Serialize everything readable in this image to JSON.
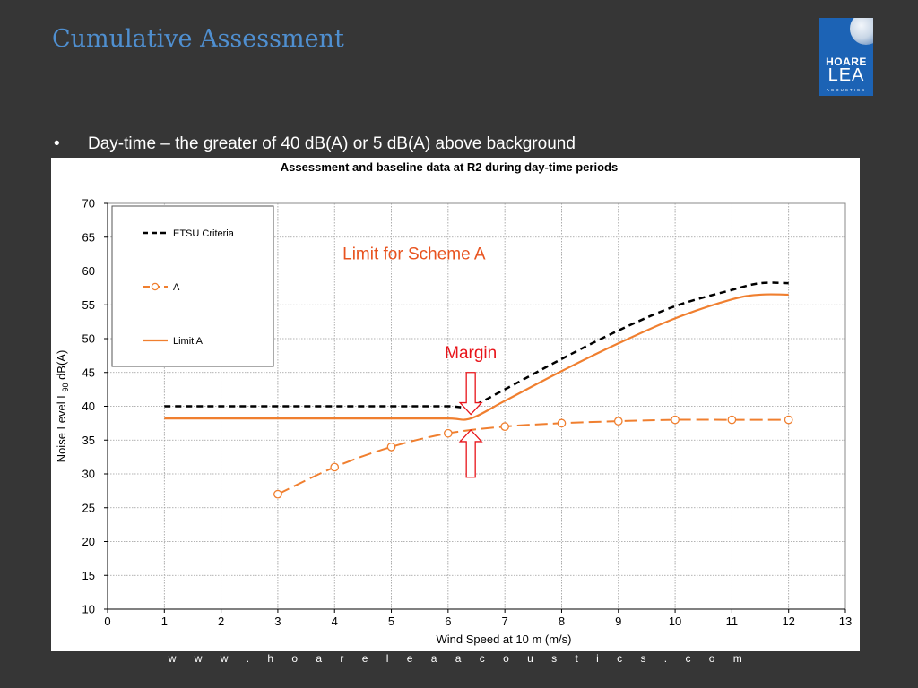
{
  "slide": {
    "title": "Cumulative Assessment",
    "bullet_marker": "•",
    "bullet_text": "Day-time – the greater of 40 dB(A) or 5 dB(A) above background",
    "footer_url": "w w w . h o a r e l e a a c o u s t i c s . c o m"
  },
  "logo": {
    "line1": "HOARE",
    "line2": "LEA",
    "line3": "ACOUSTICS"
  },
  "chart_data": {
    "type": "line",
    "title": "Assessment and baseline data at R2 during day-time periods",
    "xlabel": "Wind Speed at 10 m (m/s)",
    "ylabel_parts": {
      "main": "Noise Level L",
      "sub": "90",
      "unit": " dB(A)"
    },
    "xlim": [
      0,
      13
    ],
    "ylim": [
      10,
      70
    ],
    "x_ticks": [
      0,
      1,
      2,
      3,
      4,
      5,
      6,
      7,
      8,
      9,
      10,
      11,
      12,
      13
    ],
    "y_ticks": [
      10,
      15,
      20,
      25,
      30,
      35,
      40,
      45,
      50,
      55,
      60,
      65,
      70
    ],
    "grid": true,
    "legend_position": "top-left",
    "series": [
      {
        "name": "ETSU Criteria",
        "color": "#000000",
        "style": "dashed",
        "x": [
          1,
          2,
          3,
          4,
          5,
          6,
          6.4,
          7,
          8,
          9,
          10,
          11,
          11.5,
          12
        ],
        "y": [
          40,
          40,
          40,
          40,
          40,
          40,
          40,
          42.5,
          47,
          51.2,
          54.8,
          57.2,
          58.2,
          58.2
        ]
      },
      {
        "name": "A",
        "color": "#f07f2f",
        "style": "dashed-markers",
        "x": [
          3,
          4,
          5,
          6,
          7,
          8,
          9,
          10,
          11,
          12
        ],
        "y": [
          27,
          31,
          34,
          36,
          37,
          37.5,
          37.8,
          38,
          38,
          38
        ]
      },
      {
        "name": "Limit A",
        "color": "#f07f2f",
        "style": "solid",
        "x": [
          1,
          2,
          3,
          4,
          5,
          6,
          6.4,
          7,
          8,
          9,
          10,
          11,
          11.5,
          12
        ],
        "y": [
          38.2,
          38.2,
          38.2,
          38.2,
          38.2,
          38.2,
          38.2,
          40.8,
          45.2,
          49.3,
          53,
          55.8,
          56.5,
          56.5
        ]
      }
    ],
    "annotations": [
      {
        "text": "Limit for Scheme A",
        "color": "#e8531f",
        "x": 5.4,
        "y": 61.7
      },
      {
        "text": "Margin",
        "color": "#e8141a",
        "x": 6.4,
        "y": 47.1
      }
    ],
    "margin_arrows": {
      "x": 6.4,
      "down": {
        "from": 45,
        "to": 38.8
      },
      "up": {
        "from": 29.5,
        "to": 36.5
      },
      "color": "#e8141a"
    }
  }
}
